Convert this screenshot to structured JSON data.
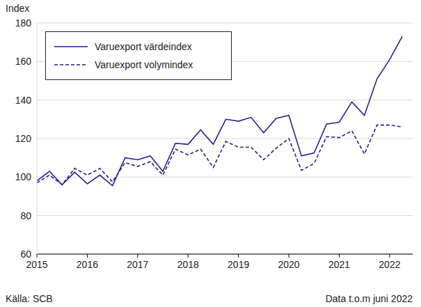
{
  "chart_data": {
    "type": "line",
    "y_label": "Index",
    "source": "Källa: SCB",
    "note": "Data t.o.m juni 2022",
    "categories": [
      "2015",
      null,
      null,
      null,
      "2016",
      null,
      null,
      null,
      "2017",
      null,
      null,
      null,
      "2018",
      null,
      null,
      null,
      "2019",
      null,
      null,
      null,
      "2020",
      null,
      null,
      null,
      "2021",
      null,
      null,
      null,
      "2022",
      null
    ],
    "series": [
      {
        "name": "Varuexport värdeindex",
        "color": "#22228c",
        "line_style": "solid",
        "values": [
          98,
          103,
          96,
          102.5,
          96.5,
          101,
          95.5,
          110,
          109,
          111,
          103,
          117.5,
          117,
          124.5,
          117,
          130,
          129,
          131,
          123,
          130.5,
          132,
          111,
          112.5,
          127.5,
          128.5,
          139,
          132,
          151,
          161,
          173
        ]
      },
      {
        "name": "Varuexport volymindex",
        "color": "#22228c",
        "line_style": "dashed",
        "values": [
          97,
          101,
          96,
          104.5,
          101,
          104.5,
          97.5,
          107.5,
          105.5,
          108,
          101,
          114.5,
          111.5,
          114.5,
          105,
          118.5,
          115.5,
          115.5,
          109,
          115,
          120,
          103.5,
          107,
          121,
          120.5,
          124,
          112,
          127,
          127,
          126
        ]
      }
    ],
    "ylim": [
      60,
      180
    ],
    "yticks": [
      60,
      80,
      100,
      120,
      140,
      160,
      180
    ],
    "grid": true,
    "legend": "upper left"
  }
}
